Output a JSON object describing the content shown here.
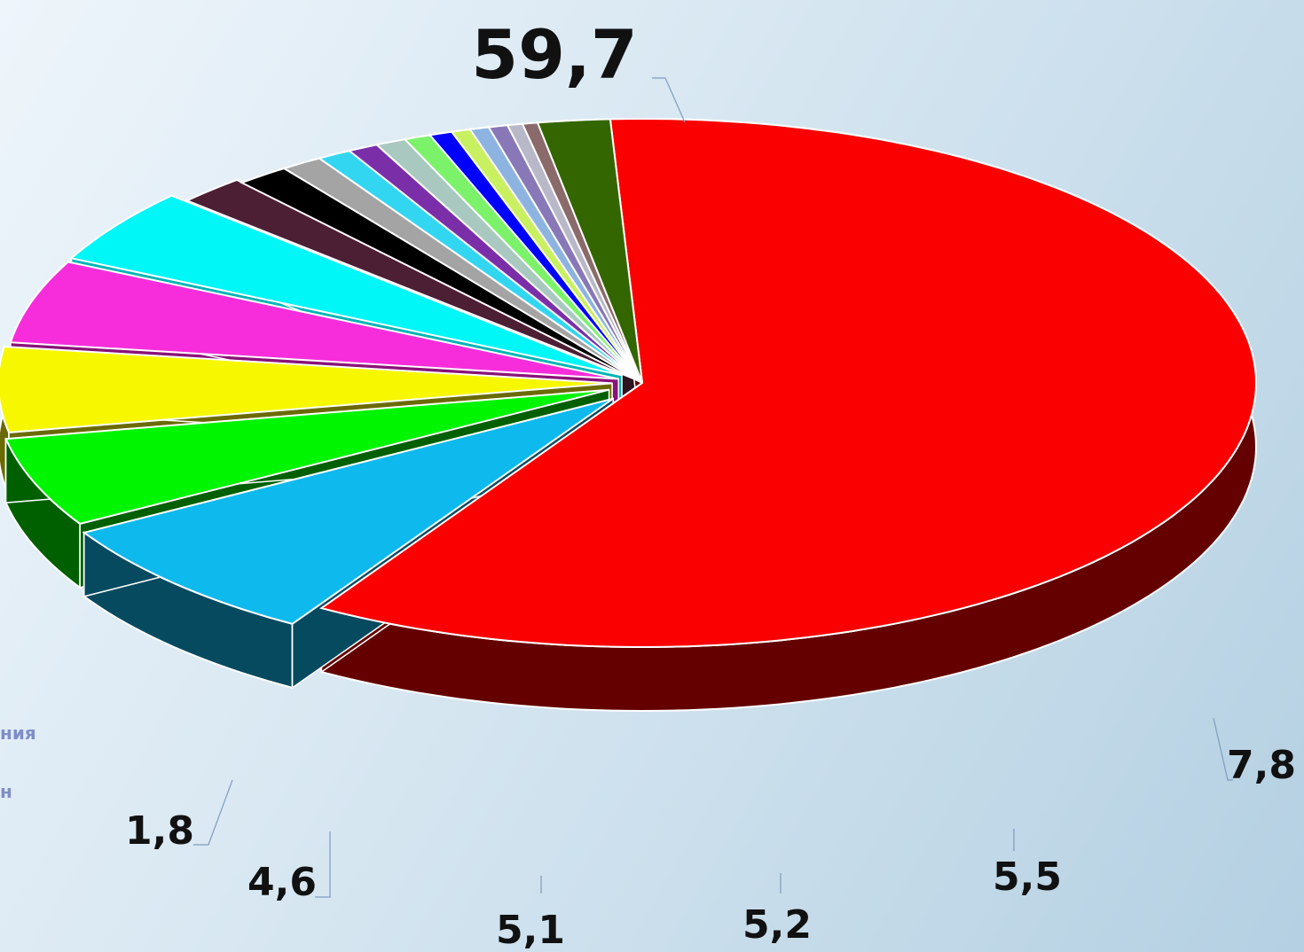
{
  "chart_data": {
    "type": "pie",
    "style": "3d-exploded",
    "values": [
      59.7,
      7.8,
      5.5,
      5.2,
      5.1,
      4.6,
      1.8,
      1.4,
      1.1,
      0.9,
      0.8,
      0.8,
      0.7,
      0.6,
      0.5,
      0.5,
      0.5,
      0.4,
      0.4,
      1.9
    ],
    "labels": [
      "59,7",
      "7,8",
      "5,5",
      "5,2",
      "5,1",
      "4,6",
      "1,8",
      "",
      "",
      "",
      "",
      "",
      "",
      "",
      "",
      "",
      "",
      "",
      "",
      ""
    ],
    "colors": [
      "#fa0000",
      "#0ebaed",
      "#00f500",
      "#f7f700",
      "#f72ddb",
      "#00f7f7",
      "#4c1f35",
      "#000000",
      "#a4a4a4",
      "#33d6f0",
      "#7a2fa8",
      "#a8c8c0",
      "#7bf26a",
      "#0000ff",
      "#c8f060",
      "#8db4e0",
      "#8878b8",
      "#b8b8c8",
      "#8a6a6a",
      "#346600"
    ],
    "side_colors": [
      "#640000",
      "#064a60",
      "#006000",
      "#6a6a00",
      "#8a1278",
      "#00b4b4",
      "#2e1420",
      "#000000",
      "#6a6a6a",
      "#1aa6c0",
      "#4a1870",
      "#6a8a84",
      "#3ab02a",
      "#0000a0",
      "#8ab030",
      "#5a84b0",
      "#5a4a88",
      "#8888a0",
      "#5a3a3a",
      "#204000"
    ],
    "legend_fragments": [
      "ния",
      "н"
    ]
  }
}
